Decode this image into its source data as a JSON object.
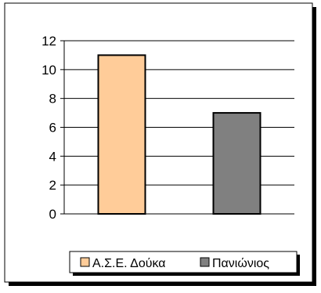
{
  "chart_data": {
    "type": "bar",
    "categories": [
      "Α.Σ.Ε. Δούκα",
      "Πανιώνιος"
    ],
    "series": [
      {
        "name": "Α.Σ.Ε. Δούκα",
        "values": [
          11,
          null
        ],
        "color": "#ffcc99"
      },
      {
        "name": "Πανιώνιος",
        "values": [
          null,
          7
        ],
        "color": "#808080"
      }
    ],
    "values": [
      11,
      7
    ],
    "y_ticks": [
      "0",
      "2",
      "4",
      "6",
      "8",
      "10",
      "12"
    ],
    "ylim": [
      0,
      12
    ],
    "grid": true,
    "legend_position": "bottom",
    "title": "",
    "xlabel": "",
    "ylabel": ""
  }
}
